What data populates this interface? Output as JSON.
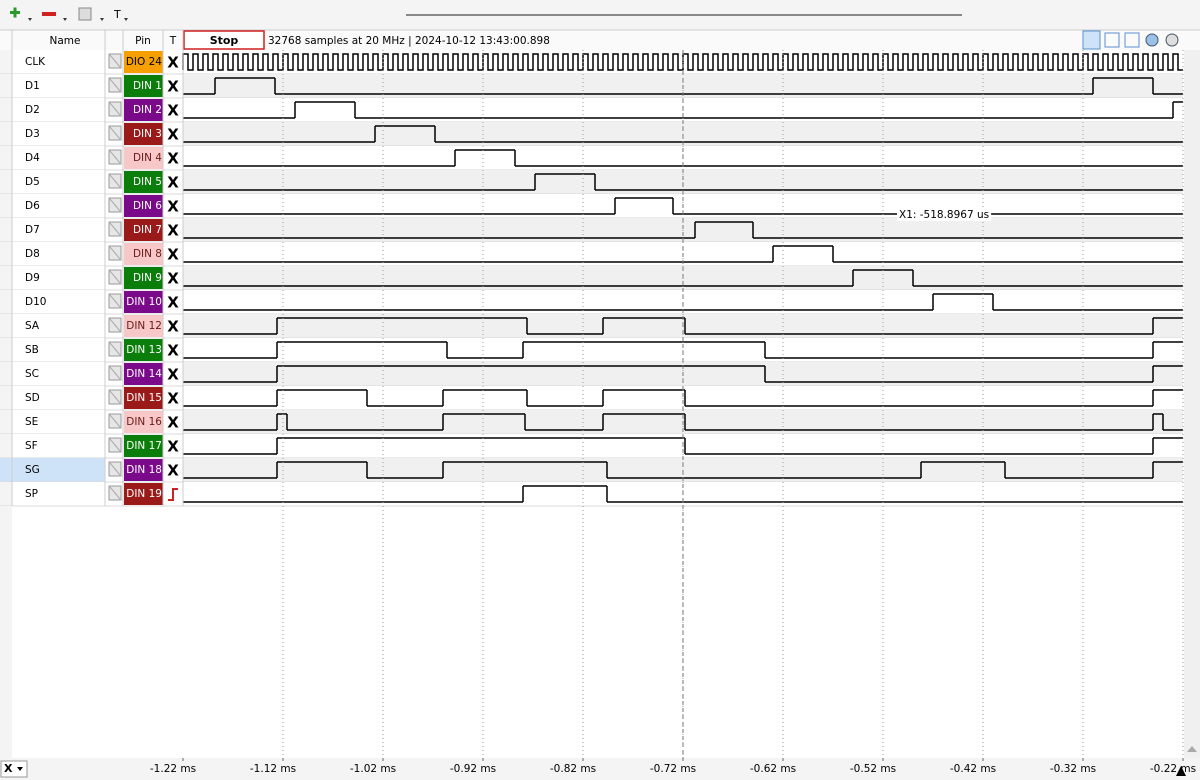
{
  "toolbar": {
    "text_tool": "T"
  },
  "header": {
    "name": "Name",
    "pin": "Pin",
    "trigger": "T",
    "stop_button": "Stop",
    "status": "32768 samples at 20 MHz | 2024-10-12 13:43:00.898"
  },
  "channels": [
    {
      "name": "CLK",
      "pin": "DIO 24",
      "pin_color": "#f5a000",
      "pin_text_color": "#000000",
      "trigger": "X",
      "clock_period_ms": 0.01
    },
    {
      "name": "D1",
      "pin": "DIN 1",
      "pin_color": "#0a7d0a",
      "pin_text_color": "#ffffff",
      "trigger": "X",
      "edges_ms": [
        -1.188,
        -1.128,
        -0.31,
        -0.25
      ]
    },
    {
      "name": "D2",
      "pin": "DIN 2",
      "pin_color": "#7a0a8a",
      "pin_text_color": "#ffffff",
      "trigger": "X",
      "edges_ms": [
        -1.108,
        -1.048,
        -0.23
      ]
    },
    {
      "name": "D3",
      "pin": "DIN 3",
      "pin_color": "#9a1a1a",
      "pin_text_color": "#ffffff",
      "trigger": "X",
      "edges_ms": [
        -1.028,
        -0.968
      ]
    },
    {
      "name": "D4",
      "pin": "DIN 4",
      "pin_color": "#f8c8c8",
      "pin_text_color": "#6a1a1a",
      "trigger": "X",
      "edges_ms": [
        -0.948,
        -0.888
      ]
    },
    {
      "name": "D5",
      "pin": "DIN 5",
      "pin_color": "#0a7d0a",
      "pin_text_color": "#ffffff",
      "trigger": "X",
      "edges_ms": [
        -0.868,
        -0.808
      ]
    },
    {
      "name": "D6",
      "pin": "DIN 6",
      "pin_color": "#7a0a8a",
      "pin_text_color": "#ffffff",
      "trigger": "X",
      "edges_ms": [
        -0.788,
        -0.73
      ]
    },
    {
      "name": "D7",
      "pin": "DIN 7",
      "pin_color": "#9a1a1a",
      "pin_text_color": "#ffffff",
      "trigger": "X",
      "edges_ms": [
        -0.708,
        -0.65
      ]
    },
    {
      "name": "D8",
      "pin": "DIN 8",
      "pin_color": "#f8c8c8",
      "pin_text_color": "#6a1a1a",
      "trigger": "X",
      "edges_ms": [
        -0.63,
        -0.57
      ]
    },
    {
      "name": "D9",
      "pin": "DIN 9",
      "pin_color": "#0a7d0a",
      "pin_text_color": "#ffffff",
      "trigger": "X",
      "edges_ms": [
        -0.55,
        -0.49
      ]
    },
    {
      "name": "D10",
      "pin": "DIN 10",
      "pin_color": "#7a0a8a",
      "pin_text_color": "#ffffff",
      "trigger": "X",
      "edges_ms": [
        -0.47,
        -0.41
      ]
    },
    {
      "name": "SA",
      "pin": "DIN 12",
      "pin_color": "#f8c8c8",
      "pin_text_color": "#6a1a1a",
      "trigger": "X",
      "edges_ms": [
        -1.126,
        -0.876,
        -0.8,
        -0.718,
        -0.25
      ]
    },
    {
      "name": "SB",
      "pin": "DIN 13",
      "pin_color": "#0a7d0a",
      "pin_text_color": "#ffffff",
      "trigger": "X",
      "edges_ms": [
        -1.126,
        -0.956,
        -0.88,
        -0.638,
        -0.25
      ]
    },
    {
      "name": "SC",
      "pin": "DIN 14",
      "pin_color": "#7a0a8a",
      "pin_text_color": "#ffffff",
      "trigger": "X",
      "edges_ms": [
        -1.126,
        -0.638,
        -0.25
      ]
    },
    {
      "name": "SD",
      "pin": "DIN 15",
      "pin_color": "#9a1a1a",
      "pin_text_color": "#ffffff",
      "trigger": "X",
      "edges_ms": [
        -1.126,
        -1.036,
        -0.96,
        -0.876,
        -0.8,
        -0.718,
        -0.25
      ]
    },
    {
      "name": "SE",
      "pin": "DIN 16",
      "pin_color": "#f8c8c8",
      "pin_text_color": "#6a1a1a",
      "trigger": "X",
      "edges_ms": [
        -1.126,
        -1.116,
        -0.96,
        -0.878,
        -0.8,
        -0.718,
        -0.25,
        -0.24
      ]
    },
    {
      "name": "SF",
      "pin": "DIN 17",
      "pin_color": "#0a7d0a",
      "pin_text_color": "#ffffff",
      "trigger": "X",
      "edges_ms": [
        -1.126,
        -0.718,
        -0.25
      ]
    },
    {
      "name": "SG",
      "pin": "DIN 18",
      "pin_color": "#7a0a8a",
      "pin_text_color": "#ffffff",
      "trigger": "X",
      "edges_ms": [
        -1.126,
        -1.036,
        -0.96,
        -0.796,
        -0.482,
        -0.398,
        -0.25
      ]
    },
    {
      "name": "SP",
      "pin": "DIN 19",
      "pin_color": "#9a1a1a",
      "pin_text_color": "#ffffff",
      "edges_ms": [
        -0.88,
        -0.796
      ]
    }
  ],
  "cursor_label": "X1: -518.8967 us",
  "time_axis": {
    "xlim": [
      -1.22,
      -0.22
    ],
    "xticks": [
      {
        "value": -1.22,
        "label": "-1.22 ms"
      },
      {
        "value": -1.12,
        "label": "-1.12 ms"
      },
      {
        "value": -1.02,
        "label": "-1.02 ms"
      },
      {
        "value": -0.92,
        "label": "-0.92 ms"
      },
      {
        "value": -0.82,
        "label": "-0.82 ms"
      },
      {
        "value": -0.72,
        "label": "-0.72 ms"
      },
      {
        "value": -0.62,
        "label": "-0.62 ms"
      },
      {
        "value": -0.52,
        "label": "-0.52 ms"
      },
      {
        "value": -0.42,
        "label": "-0.42 ms"
      },
      {
        "value": -0.32,
        "label": "-0.32 ms"
      },
      {
        "value": -0.22,
        "label": "-0.22 ms"
      }
    ]
  },
  "bottom_selector": "X"
}
